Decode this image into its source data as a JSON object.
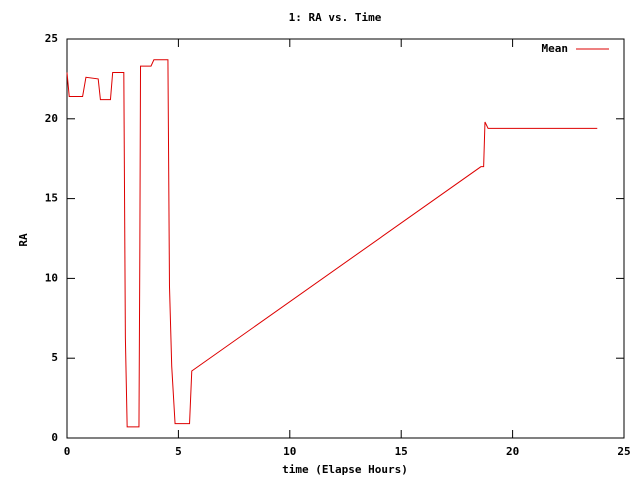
{
  "chart_data": {
    "type": "line",
    "title": "1: RA vs. Time",
    "x_label": "time (Elapse Hours)",
    "y_label": "RA",
    "x": [
      0,
      0.1,
      0.7,
      0.85,
      1.4,
      1.5,
      1.95,
      2.05,
      2.55,
      2.62,
      2.7,
      3.23,
      3.27,
      3.3,
      3.77,
      3.9,
      4.53,
      4.6,
      4.7,
      4.85,
      5.5,
      5.6,
      18.58,
      18.7,
      18.76,
      18.9,
      23.8
    ],
    "series": [
      {
        "name": "Mean",
        "color": "#dd0000",
        "values": [
          22.9,
          21.4,
          21.4,
          22.6,
          22.5,
          21.2,
          21.2,
          22.9,
          22.9,
          6.3,
          0.7,
          0.7,
          12,
          23.3,
          23.3,
          23.7,
          23.7,
          9.5,
          4.5,
          0.9,
          0.9,
          4.2,
          17.0,
          17.0,
          19.8,
          19.4,
          19.4
        ]
      }
    ],
    "xlim": [
      0,
      25
    ],
    "ylim": [
      0,
      25
    ],
    "xticks": [
      0,
      5,
      10,
      15,
      20,
      25
    ],
    "yticks": [
      0,
      5,
      10,
      15,
      20,
      25
    ],
    "legend": "top-right"
  }
}
